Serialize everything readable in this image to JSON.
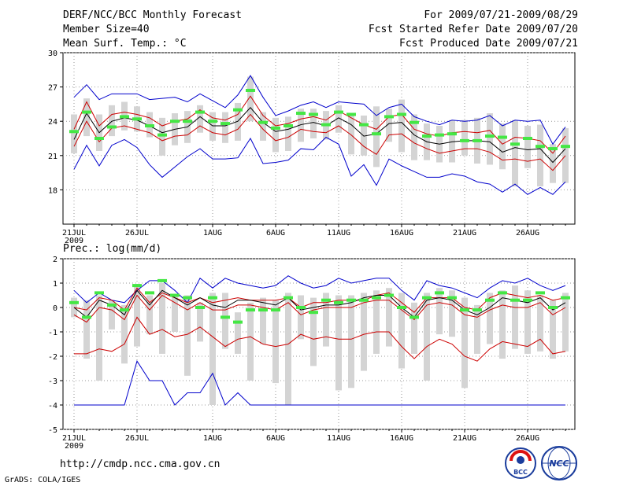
{
  "header": {
    "left": [
      "DERF/NCC/BCC Monthly Forecast",
      "Member Size=40",
      "Mean Surf. Temp.: °C"
    ],
    "right": [
      "For 2009/07/21-2009/08/29",
      "Fcst Started Refer Date 2009/07/20",
      "Fcst Produced Date 2009/07/21"
    ]
  },
  "footer": {
    "url": "http://cmdp.ncc.cma.gov.cn",
    "credit": "GrADS: COLA/IGES",
    "logo_left_text": "BCC",
    "logo_right_text": "NCC"
  },
  "colors": {
    "max_min": "#0000cc",
    "spread": "#cc0000",
    "mean": "#000000",
    "box": "#d4d4d4",
    "obs": "#44e744"
  },
  "chart_data": [
    {
      "type": "line",
      "panel": "temperature",
      "title": "Mean Surf. Temp.: °C",
      "ylim": [
        15,
        30
      ],
      "yticks": [
        18,
        21,
        24,
        27,
        30
      ],
      "xticks": [
        {
          "day": 1,
          "label": "21JUL",
          "sub": "2009"
        },
        {
          "day": 6,
          "label": "26JUL"
        },
        {
          "day": 12,
          "label": "1AUG"
        },
        {
          "day": 17,
          "label": "6AUG"
        },
        {
          "day": 22,
          "label": "11AUG"
        },
        {
          "day": 27,
          "label": "16AUG"
        },
        {
          "day": 32,
          "label": "21AUG"
        },
        {
          "day": 37,
          "label": "26AUG"
        }
      ],
      "x": [
        1,
        2,
        3,
        4,
        5,
        6,
        7,
        8,
        9,
        10,
        11,
        12,
        13,
        14,
        15,
        16,
        17,
        18,
        19,
        20,
        21,
        22,
        23,
        24,
        25,
        26,
        27,
        28,
        29,
        30,
        31,
        32,
        33,
        34,
        35,
        36,
        37,
        38,
        39,
        40
      ],
      "series": [
        {
          "name": "max",
          "values": [
            26.1,
            27.2,
            25.9,
            26.4,
            26.4,
            26.4,
            25.9,
            26.0,
            26.1,
            25.7,
            26.4,
            25.8,
            25.2,
            26.3,
            28.0,
            26.1,
            24.5,
            24.9,
            25.4,
            25.7,
            25.2,
            25.7,
            25.6,
            25.5,
            24.5,
            25.2,
            25.5,
            24.4,
            24.0,
            23.7,
            24.1,
            24.0,
            24.1,
            24.5,
            23.6,
            24.1,
            24.0,
            24.1,
            22.0,
            23.5
          ]
        },
        {
          "name": "upper",
          "values": [
            23.3,
            25.7,
            23.6,
            24.6,
            24.8,
            24.6,
            24.3,
            23.6,
            24.0,
            24.2,
            25.0,
            24.3,
            24.1,
            24.6,
            26.2,
            24.5,
            23.6,
            23.8,
            24.2,
            24.4,
            24.1,
            24.9,
            24.3,
            23.7,
            23.3,
            24.4,
            24.6,
            23.3,
            22.9,
            22.7,
            23.0,
            23.1,
            23.0,
            23.2,
            22.0,
            22.6,
            22.5,
            22.3,
            21.2,
            22.7
          ]
        },
        {
          "name": "mean",
          "values": [
            22.4,
            24.7,
            23.0,
            24.0,
            24.3,
            24.1,
            23.6,
            23.0,
            23.3,
            23.5,
            24.4,
            23.6,
            23.6,
            24.0,
            25.2,
            23.9,
            23.1,
            23.3,
            23.7,
            23.9,
            23.6,
            24.3,
            23.7,
            22.7,
            22.9,
            23.8,
            23.9,
            22.8,
            22.2,
            22.0,
            22.2,
            22.3,
            22.3,
            22.2,
            21.3,
            21.7,
            21.5,
            21.6,
            20.4,
            21.6
          ]
        },
        {
          "name": "lower",
          "values": [
            21.8,
            24.0,
            22.2,
            23.4,
            23.6,
            23.3,
            23.0,
            22.3,
            22.7,
            22.8,
            23.6,
            23.0,
            22.8,
            23.3,
            24.6,
            23.3,
            22.3,
            22.6,
            23.3,
            23.1,
            23.0,
            23.6,
            22.8,
            21.8,
            21.1,
            22.8,
            22.9,
            22.1,
            21.6,
            21.2,
            21.4,
            21.6,
            21.6,
            21.3,
            20.6,
            20.7,
            20.5,
            20.7,
            19.7,
            21.0
          ]
        },
        {
          "name": "min",
          "values": [
            19.8,
            21.9,
            20.1,
            21.9,
            22.4,
            21.7,
            20.2,
            19.1,
            20.0,
            20.9,
            21.6,
            20.7,
            20.7,
            20.8,
            22.5,
            20.3,
            20.4,
            20.6,
            21.6,
            21.5,
            22.6,
            22.0,
            19.2,
            20.2,
            18.4,
            20.7,
            20.1,
            19.6,
            19.1,
            19.1,
            19.4,
            19.2,
            18.7,
            18.5,
            17.8,
            18.5,
            17.6,
            18.2,
            17.6,
            18.7
          ]
        }
      ],
      "boxes": [
        [
          21.2,
          24.6
        ],
        [
          22.7,
          26.0
        ],
        [
          21.4,
          24.6
        ],
        [
          22.7,
          25.4
        ],
        [
          23.2,
          25.7
        ],
        [
          23.1,
          25.3
        ],
        [
          22.6,
          24.8
        ],
        [
          21.0,
          24.3
        ],
        [
          21.9,
          24.7
        ],
        [
          22.1,
          24.9
        ],
        [
          23.0,
          25.4
        ],
        [
          22.3,
          24.8
        ],
        [
          22.1,
          24.8
        ],
        [
          22.3,
          25.6
        ],
        [
          24.0,
          27.9
        ],
        [
          22.3,
          24.8
        ],
        [
          21.3,
          24.3
        ],
        [
          21.4,
          24.4
        ],
        [
          22.2,
          25.1
        ],
        [
          22.5,
          25.1
        ],
        [
          22.4,
          24.9
        ],
        [
          23.0,
          25.4
        ],
        [
          21.1,
          24.6
        ],
        [
          21.0,
          24.5
        ],
        [
          20.0,
          25.3
        ],
        [
          22.2,
          25.1
        ],
        [
          21.3,
          25.9
        ],
        [
          20.6,
          24.6
        ],
        [
          20.6,
          23.8
        ],
        [
          20.4,
          23.6
        ],
        [
          20.4,
          24.1
        ],
        [
          21.0,
          24.1
        ],
        [
          20.3,
          24.3
        ],
        [
          20.2,
          24.7
        ],
        [
          19.8,
          23.8
        ],
        [
          18.3,
          24.1
        ],
        [
          19.9,
          23.6
        ],
        [
          18.3,
          23.7
        ],
        [
          18.6,
          22.0
        ],
        [
          18.6,
          23.4
        ]
      ],
      "obs": [
        23.1,
        24.8,
        22.5,
        23.5,
        24.4,
        24.2,
        23.6,
        22.8,
        24.0,
        24.0,
        24.8,
        24.0,
        23.8,
        25.0,
        26.7,
        23.9,
        23.4,
        23.6,
        24.7,
        24.6,
        23.7,
        24.8,
        24.6,
        23.7,
        22.9,
        24.4,
        24.6,
        23.9,
        22.7,
        22.8,
        22.9,
        22.3,
        22.3,
        22.7,
        22.6,
        22.0,
        22.5,
        21.8,
        21.6,
        21.8
      ]
    },
    {
      "type": "line",
      "panel": "precipitation",
      "title": "Prec.: log(mm/d)",
      "ylim": [
        -5,
        2
      ],
      "yticks": [
        -5,
        -4,
        -3,
        -2,
        -1,
        0,
        1,
        2
      ],
      "xticks": [
        {
          "day": 1,
          "label": "21JUL",
          "sub": "2009"
        },
        {
          "day": 6,
          "label": "26JUL"
        },
        {
          "day": 12,
          "label": "1AUG"
        },
        {
          "day": 17,
          "label": "6AUG"
        },
        {
          "day": 22,
          "label": "11AUG"
        },
        {
          "day": 27,
          "label": "16AUG"
        },
        {
          "day": 32,
          "label": "21AUG"
        },
        {
          "day": 37,
          "label": "26AUG"
        }
      ],
      "x": [
        1,
        2,
        3,
        4,
        5,
        6,
        7,
        8,
        9,
        10,
        11,
        12,
        13,
        14,
        15,
        16,
        17,
        18,
        19,
        20,
        21,
        22,
        23,
        24,
        25,
        26,
        27,
        28,
        29,
        30,
        31,
        32,
        33,
        34,
        35,
        36,
        37,
        38,
        39,
        40
      ],
      "series": [
        {
          "name": "max",
          "values": [
            0.7,
            0.2,
            0.6,
            0.3,
            0.2,
            0.7,
            1.1,
            1.1,
            0.7,
            0.2,
            1.2,
            0.8,
            1.2,
            1.0,
            0.9,
            0.8,
            0.9,
            1.3,
            1.0,
            0.8,
            0.9,
            1.2,
            1.0,
            1.1,
            1.2,
            1.2,
            0.7,
            0.3,
            1.1,
            0.9,
            0.8,
            0.6,
            0.4,
            0.8,
            1.1,
            1.0,
            1.2,
            0.9,
            0.7,
            0.9
          ]
        },
        {
          "name": "upper",
          "values": [
            0.0,
            -0.1,
            0.4,
            0.3,
            -0.1,
            0.8,
            0.2,
            0.6,
            0.4,
            0.2,
            0.4,
            0.2,
            0.3,
            0.4,
            0.3,
            0.3,
            0.3,
            0.4,
            0.0,
            0.2,
            0.2,
            0.3,
            0.3,
            0.3,
            0.5,
            0.6,
            0.2,
            -0.2,
            0.4,
            0.4,
            0.4,
            0.0,
            -0.1,
            0.4,
            0.6,
            0.5,
            0.4,
            0.5,
            0.3,
            0.4
          ]
        },
        {
          "name": "mean",
          "values": [
            0.0,
            -0.4,
            0.3,
            0.1,
            -0.3,
            0.7,
            0.1,
            0.7,
            0.4,
            0.1,
            0.4,
            0.1,
            0.0,
            0.3,
            0.3,
            0.2,
            0.1,
            0.4,
            -0.1,
            0.0,
            0.1,
            0.1,
            0.2,
            0.4,
            0.5,
            0.5,
            0.0,
            -0.4,
            0.3,
            0.4,
            0.3,
            -0.1,
            -0.3,
            0.0,
            0.4,
            0.3,
            0.2,
            0.4,
            -0.1,
            0.2
          ]
        },
        {
          "name": "lower",
          "values": [
            -0.3,
            -0.6,
            0.0,
            -0.1,
            -0.5,
            0.5,
            -0.1,
            0.5,
            0.2,
            -0.1,
            0.2,
            -0.1,
            -0.1,
            0.1,
            0.1,
            0.0,
            -0.1,
            0.2,
            -0.3,
            -0.1,
            0.0,
            0.0,
            0.0,
            0.2,
            0.3,
            0.3,
            -0.1,
            -0.5,
            0.1,
            0.2,
            0.1,
            -0.3,
            -0.4,
            -0.1,
            0.1,
            0.0,
            0.0,
            0.2,
            -0.3,
            0.0
          ]
        },
        {
          "name": "min",
          "values": [
            -1.9,
            -1.9,
            -1.7,
            -1.8,
            -1.5,
            -0.4,
            -1.1,
            -0.9,
            -1.2,
            -1.1,
            -0.8,
            -1.2,
            -1.6,
            -1.3,
            -1.2,
            -1.5,
            -1.6,
            -1.5,
            -1.1,
            -1.3,
            -1.2,
            -1.3,
            -1.3,
            -1.1,
            -1.0,
            -1.0,
            -1.6,
            -2.1,
            -1.6,
            -1.3,
            -1.5,
            -2.0,
            -2.2,
            -1.7,
            -1.4,
            -1.5,
            -1.6,
            -1.3,
            -1.9,
            -1.8
          ]
        },
        {
          "name": "absmin",
          "values": [
            -4.0,
            -4.0,
            -4.0,
            -4.0,
            -4.0,
            -2.2,
            -3.0,
            -3.0,
            -4.0,
            -3.5,
            -3.5,
            -2.7,
            -4.0,
            -3.5,
            -4.0,
            -4.0,
            -4.0,
            -4.0,
            -4.0,
            -4.0,
            -4.0,
            -4.0,
            -4.0,
            -4.0,
            -4.0,
            -4.0,
            -4.0,
            -4.0,
            -4.0,
            -4.0,
            -4.0,
            -4.0,
            -4.0,
            -4.0,
            -4.0,
            -4.0,
            -4.0,
            -4.0,
            -4.0,
            -4.0
          ]
        }
      ],
      "boxes": [
        [
          -0.4,
          0.4
        ],
        [
          -2.1,
          0.3
        ],
        [
          -3.0,
          0.5
        ],
        [
          -0.9,
          0.3
        ],
        [
          -2.3,
          0.1
        ],
        [
          -1.6,
          0.9
        ],
        [
          -1.1,
          0.5
        ],
        [
          -1.9,
          1.0
        ],
        [
          -1.0,
          0.5
        ],
        [
          -2.8,
          0.5
        ],
        [
          -1.4,
          0.2
        ],
        [
          -4.0,
          0.6
        ],
        [
          -1.7,
          0.6
        ],
        [
          -1.9,
          -0.2
        ],
        [
          -3.0,
          0.2
        ],
        [
          -1.5,
          0.4
        ],
        [
          -3.1,
          0.3
        ],
        [
          -4.0,
          0.6
        ],
        [
          -1.3,
          0.5
        ],
        [
          -2.4,
          0.4
        ],
        [
          -1.6,
          0.6
        ],
        [
          -3.4,
          0.5
        ],
        [
          -3.3,
          0.5
        ],
        [
          -2.6,
          0.6
        ],
        [
          -1.9,
          0.7
        ],
        [
          -1.6,
          0.8
        ],
        [
          -2.5,
          0.6
        ],
        [
          -1.9,
          0.2
        ],
        [
          -3.0,
          0.6
        ],
        [
          -1.1,
          0.8
        ],
        [
          -1.2,
          0.7
        ],
        [
          -3.3,
          0.4
        ],
        [
          -1.9,
          0.1
        ],
        [
          -1.5,
          0.6
        ],
        [
          -2.1,
          0.7
        ],
        [
          -1.7,
          0.9
        ],
        [
          -1.9,
          0.7
        ],
        [
          -1.8,
          0.5
        ],
        [
          -2.1,
          0.3
        ],
        [
          -1.8,
          0.6
        ]
      ],
      "obs": [
        0.2,
        -0.4,
        0.6,
        0.1,
        -0.1,
        0.9,
        0.6,
        1.1,
        0.5,
        0.4,
        0.0,
        0.4,
        -0.4,
        -0.6,
        -0.1,
        -0.1,
        -0.1,
        0.4,
        0.0,
        -0.2,
        0.3,
        0.2,
        0.3,
        0.3,
        0.4,
        0.5,
        0.0,
        -0.4,
        0.4,
        0.6,
        0.4,
        -0.1,
        -0.1,
        0.3,
        0.6,
        0.3,
        0.3,
        0.6,
        0.0,
        0.4
      ]
    }
  ]
}
